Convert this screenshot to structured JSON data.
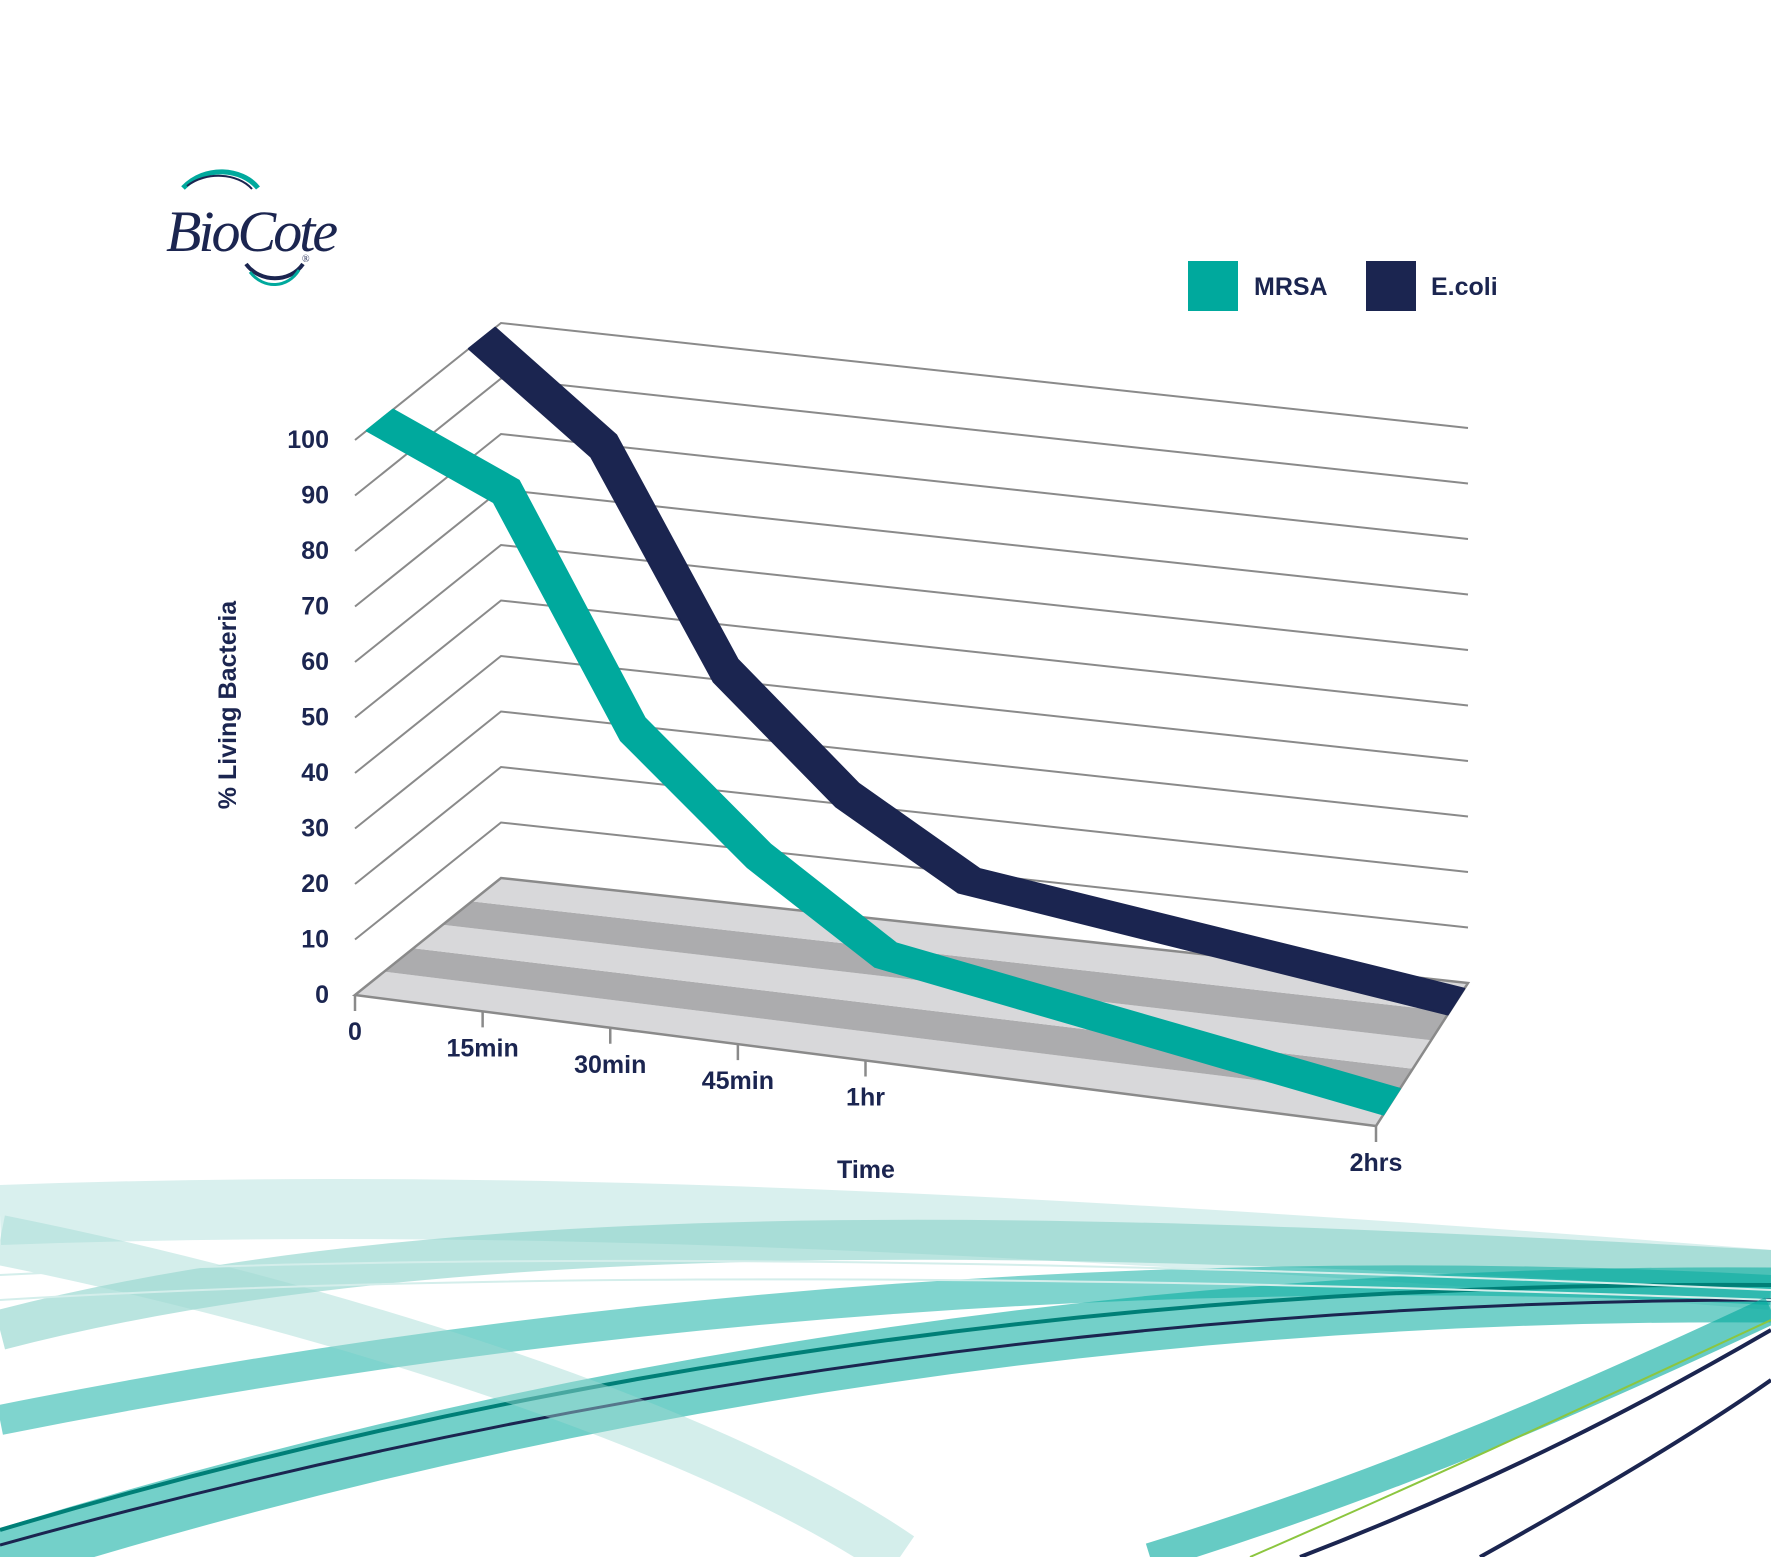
{
  "brand": {
    "logo_text": "BioCote",
    "registered_mark": "®"
  },
  "colors": {
    "mrsa": "#00a99d",
    "ecoli": "#1b2550",
    "text": "#1b2550",
    "grid": "#8a8a8a",
    "floor_light": "#d8d8da",
    "floor_dark": "#acacae"
  },
  "chart_data": {
    "type": "line",
    "style": "3d-ribbon",
    "title": "",
    "xlabel": "Time",
    "ylabel": "% Living Bacteria",
    "ylim": [
      0,
      100
    ],
    "y_ticks": [
      "0",
      "10",
      "20",
      "30",
      "40",
      "50",
      "60",
      "70",
      "80",
      "90",
      "100"
    ],
    "categories": [
      "0",
      "15min",
      "30min",
      "45min",
      "1hr",
      "2hrs"
    ],
    "x_minutes": [
      0,
      15,
      30,
      45,
      60,
      120
    ],
    "grid": true,
    "legend_position": "top-right",
    "series": [
      {
        "name": "MRSA",
        "values": [
          100,
          90,
          50,
          30,
          15,
          0
        ]
      },
      {
        "name": "E.coli",
        "values": [
          100,
          83,
          45,
          25,
          12,
          0
        ]
      }
    ]
  }
}
